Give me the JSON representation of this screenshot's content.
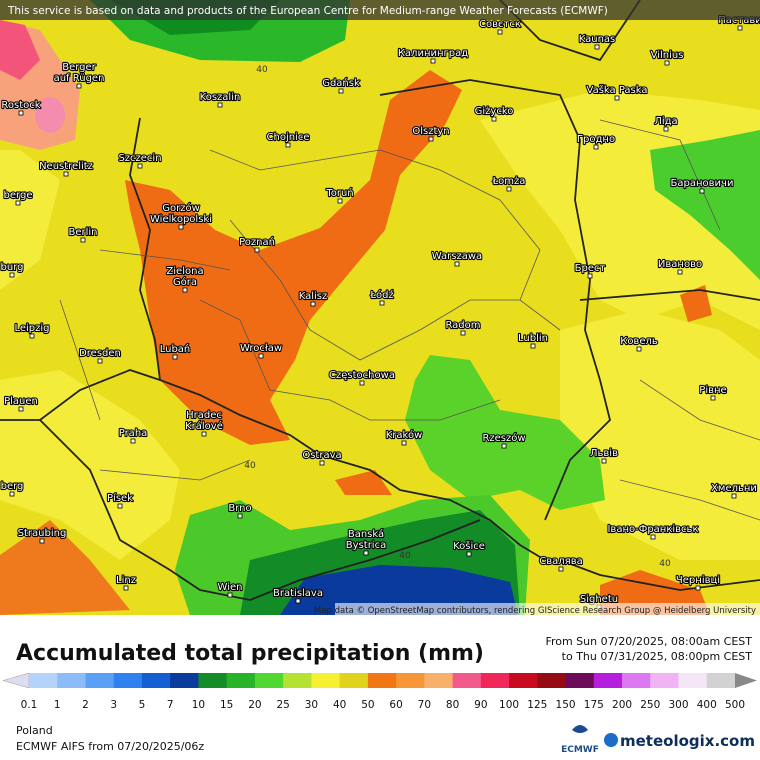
{
  "header": {
    "notice": "This service is based on data and products of the European Centre for Medium-range Weather Forecasts (ECMWF)"
  },
  "map": {
    "attribution": "Map data © OpenStreetMap contributors, rendering GIScience Research Group @ Heidelberg University",
    "cities": [
      [
        "Совєтск"
      ],
      [
        "Kaunas"
      ],
      [
        "Vilnius"
      ],
      [
        "Пастави"
      ],
      [
        "Калининград"
      ],
      [
        "Gdańsk"
      ],
      [
        "Berger",
        "auf Rügen"
      ],
      [
        "Koszalin"
      ],
      [
        "Rostock"
      ],
      [
        "Vaška Paska"
      ],
      [
        "Ліда"
      ],
      [
        "Olsztyn"
      ],
      [
        "Giżycko"
      ],
      [
        "Chojnice"
      ],
      [
        "Szczecin"
      ],
      [
        "Neustrelitz"
      ],
      [
        "Гродно"
      ],
      [
        "Łomża"
      ],
      [
        "Барановичи"
      ],
      [
        "Toruń"
      ],
      [
        "Gorzów",
        "Wielkopolski"
      ],
      [
        "berge"
      ],
      [
        "Berlin"
      ],
      [
        "Poznań"
      ],
      [
        "Warszawa"
      ],
      [
        "Брест"
      ],
      [
        "Иваново"
      ],
      [
        "burg"
      ],
      [
        "Zielona",
        "Góra"
      ],
      [
        "Kalisz"
      ],
      [
        "Łódź"
      ],
      [
        "Radom"
      ],
      [
        "Lublin"
      ],
      [
        "Ковель"
      ],
      [
        "Leipzig"
      ],
      [
        "Dresden"
      ],
      [
        "Lubań"
      ],
      [
        "Wrocław"
      ],
      [
        "Częstochowa"
      ],
      [
        "Рівне"
      ],
      [
        "Plauen"
      ],
      [
        "Hradec",
        "Králové"
      ],
      [
        "Praha"
      ],
      [
        "Kraków"
      ],
      [
        "Rzeszów"
      ],
      [
        "Львів"
      ],
      [
        "Ostrava"
      ],
      [
        "berg"
      ],
      [
        "Хмельни"
      ],
      [
        "Písek"
      ],
      [
        "Brno"
      ],
      [
        "Straubing"
      ],
      [
        "Banská",
        "Bystrica"
      ],
      [
        "Košice"
      ],
      [
        "Івано-Франківськ"
      ],
      [
        "Свалява"
      ],
      [
        "Linz"
      ],
      [
        "Wien"
      ],
      [
        "Bratislava"
      ],
      [
        "Чернівці"
      ],
      [
        "Sighetu"
      ]
    ],
    "contour_labels": [
      "40",
      "40",
      "40",
      "40"
    ]
  },
  "panel": {
    "title": "Accumulated total precipitation (mm)",
    "period_from": "From Sun 07/20/2025, 08:00am CEST",
    "period_to": "to Thu 07/31/2025, 08:00pm CEST",
    "legend_ticks": [
      "0.1",
      "1",
      "2",
      "3",
      "5",
      "7",
      "10",
      "15",
      "20",
      "25",
      "30",
      "40",
      "50",
      "60",
      "70",
      "80",
      "90",
      "100",
      "125",
      "150",
      "175",
      "200",
      "250",
      "300",
      "400",
      "500"
    ],
    "region": "Poland",
    "model": "ECMWF AIFS from 07/20/2025/06z",
    "logo_ecmwf": "ECMWF",
    "logo_site": "meteologix.com"
  }
}
